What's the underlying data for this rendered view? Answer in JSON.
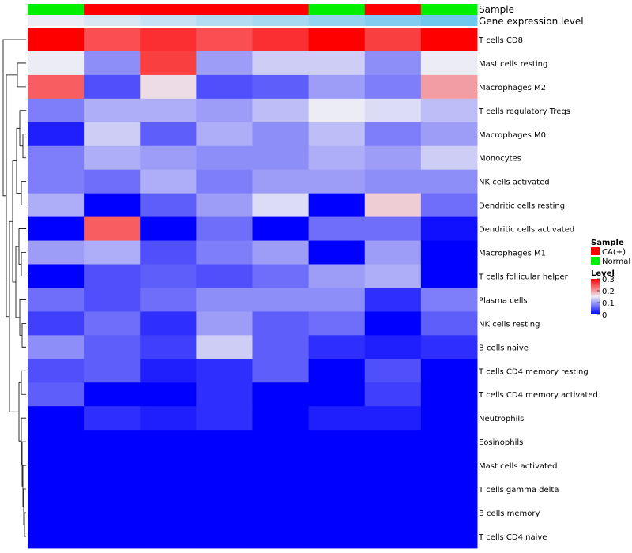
{
  "chart_data": {
    "type": "heatmap",
    "annotation_tracks": [
      {
        "name": "Sample",
        "values": [
          "Normal",
          "CA(+)",
          "CA(+)",
          "CA(+)",
          "CA(+)",
          "Normal",
          "CA(+)",
          "Normal"
        ]
      },
      {
        "name": "Gene expression level",
        "values": [
          0.0,
          0.15,
          0.3,
          0.45,
          0.55,
          0.7,
          0.85,
          1.0
        ]
      }
    ],
    "rows": [
      "T cells CD8",
      "Mast cells resting",
      "Macrophages M2",
      "T cells regulatory  Tregs",
      "Macrophages M0",
      "Monocytes",
      "NK cells activated",
      "Dendritic cells resting",
      "Dendritic cells activated",
      "Macrophages M1",
      "T cells follicular helper",
      "Plasma cells",
      "NK cells resting",
      "B cells naive",
      "T cells CD4 memory resting",
      "T cells CD4 memory activated",
      "Neutrophils",
      "Eosinophils",
      "Mast cells activated",
      "T cells gamma delta",
      "B cells memory",
      "T cells CD4 naive"
    ],
    "values": [
      [
        0.3,
        0.25,
        0.27,
        0.25,
        0.27,
        0.3,
        0.26,
        0.3
      ],
      [
        0.15,
        0.09,
        0.26,
        0.1,
        0.13,
        0.13,
        0.09,
        0.15
      ],
      [
        0.24,
        0.05,
        0.16,
        0.05,
        0.06,
        0.1,
        0.08,
        0.2
      ],
      [
        0.08,
        0.11,
        0.11,
        0.1,
        0.12,
        0.15,
        0.14,
        0.12
      ],
      [
        0.02,
        0.13,
        0.06,
        0.11,
        0.09,
        0.12,
        0.08,
        0.1
      ],
      [
        0.08,
        0.11,
        0.1,
        0.09,
        0.09,
        0.11,
        0.1,
        0.13
      ],
      [
        0.08,
        0.07,
        0.11,
        0.08,
        0.1,
        0.1,
        0.09,
        0.09
      ],
      [
        0.11,
        0.0,
        0.06,
        0.1,
        0.14,
        0.0,
        0.17,
        0.07
      ],
      [
        0.0,
        0.24,
        0.0,
        0.07,
        0.0,
        0.07,
        0.07,
        0.01
      ],
      [
        0.1,
        0.11,
        0.05,
        0.08,
        0.1,
        0.0,
        0.1,
        0.0
      ],
      [
        0.0,
        0.05,
        0.06,
        0.05,
        0.07,
        0.1,
        0.11,
        0.0
      ],
      [
        0.07,
        0.05,
        0.07,
        0.09,
        0.09,
        0.09,
        0.03,
        0.08
      ],
      [
        0.04,
        0.07,
        0.03,
        0.1,
        0.06,
        0.07,
        0.0,
        0.06
      ],
      [
        0.09,
        0.06,
        0.04,
        0.13,
        0.06,
        0.03,
        0.02,
        0.03
      ],
      [
        0.05,
        0.06,
        0.02,
        0.03,
        0.06,
        0.0,
        0.05,
        0.0
      ],
      [
        0.06,
        0.0,
        0.0,
        0.03,
        0.0,
        0.0,
        0.04,
        0.0
      ],
      [
        0.0,
        0.03,
        0.02,
        0.03,
        0.0,
        0.02,
        0.02,
        0.0
      ],
      [
        0.0,
        0.0,
        0.0,
        0.0,
        0.0,
        0.0,
        0.0,
        0.0
      ],
      [
        0.0,
        0.0,
        0.0,
        0.0,
        0.0,
        0.0,
        0.0,
        0.0
      ],
      [
        0.0,
        0.0,
        0.0,
        0.0,
        0.0,
        0.0,
        0.0,
        0.0
      ],
      [
        0.0,
        0.0,
        0.0,
        0.0,
        0.0,
        0.0,
        0.0,
        0.0
      ],
      [
        0.0,
        0.0,
        0.0,
        0.0,
        0.0,
        0.0,
        0.0,
        0.0
      ]
    ],
    "color_scale": {
      "stops": [
        0,
        0.15,
        0.3
      ],
      "colors": [
        "#0000ff",
        "#ececf5",
        "#ff0000"
      ]
    },
    "sample_colors": {
      "CA(+)": "#ff0000",
      "Normal": "#00ee00"
    },
    "expression_colors": [
      "#ececf5",
      "#6ec8ee"
    ],
    "legend": {
      "sample_title": "Sample",
      "sample_entries": [
        "CA(+)",
        "Normal"
      ],
      "level_title": "Level",
      "level_ticks": [
        "0.3",
        "0.2",
        "0.1",
        "0"
      ],
      "level_tick_values": [
        0.3,
        0.2,
        0.1,
        0
      ],
      "placement": "right"
    },
    "row_dendrogram": "left"
  }
}
